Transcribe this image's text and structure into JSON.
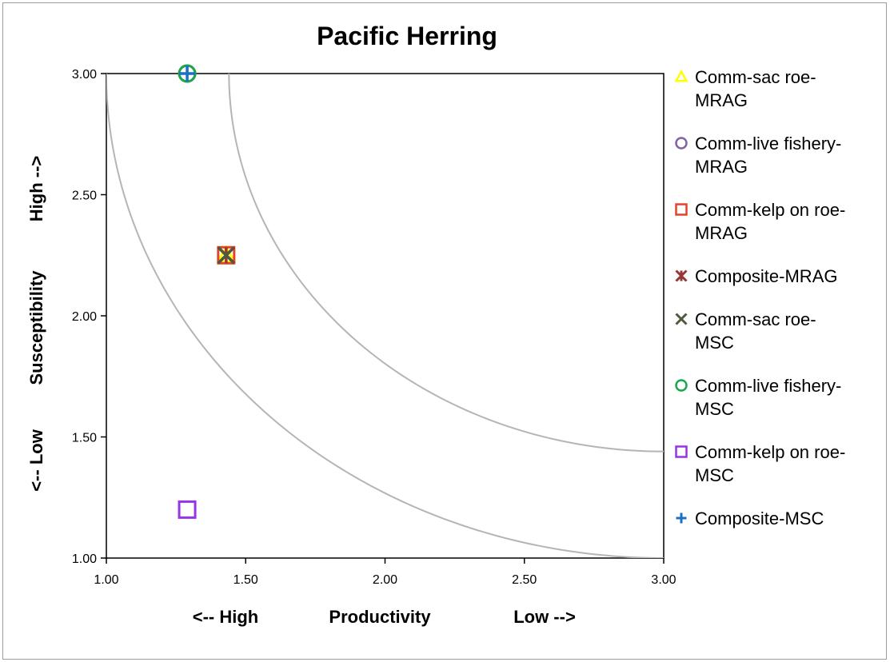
{
  "chart_data": {
    "type": "scatter",
    "title": "Pacific Herring",
    "xlim": [
      1.0,
      3.0
    ],
    "ylim": [
      1.0,
      3.0
    ],
    "x_ticks": [
      "1.00",
      "1.50",
      "2.00",
      "2.50",
      "3.00"
    ],
    "y_ticks": [
      "1.00",
      "1.50",
      "2.00",
      "2.50",
      "3.00"
    ],
    "xlabel": {
      "left": "<-- High",
      "center": "Productivity",
      "right": "Low  -->"
    },
    "ylabel": {
      "left": "<-- Low",
      "center": "Susceptibility",
      "right": "High  -->"
    },
    "grid": false,
    "legend_position": "right",
    "reference_curves": [
      {
        "center_x": 3.0,
        "center_y": 3.0,
        "radius": 1.56
      },
      {
        "center_x": 3.0,
        "center_y": 3.0,
        "radius": 2.0
      }
    ],
    "series": [
      {
        "name": "Comm-sac roe-MRAG",
        "legend_lines": [
          "Comm-sac roe-",
          "MRAG"
        ],
        "marker": "triangle",
        "color": "#ffff00",
        "x": 1.43,
        "y": 2.25
      },
      {
        "name": "Comm-live fishery-MRAG",
        "legend_lines": [
          "Comm-live fishery-",
          "MRAG"
        ],
        "marker": "circle",
        "color": "#8064a2",
        "x": 1.29,
        "y": 3.0
      },
      {
        "name": "Comm-kelp on roe-MRAG",
        "legend_lines": [
          "Comm-kelp on roe-",
          "MRAG"
        ],
        "marker": "square",
        "color": "#e8412a",
        "x": 1.43,
        "y": 2.25
      },
      {
        "name": "Composite-MRAG",
        "legend_lines": [
          "Composite-MRAG"
        ],
        "marker": "asterisk",
        "color": "#953735",
        "x": 1.43,
        "y": 2.25
      },
      {
        "name": "Comm-sac roe-MSC",
        "legend_lines": [
          "Comm-sac roe-",
          "MSC"
        ],
        "marker": "x",
        "color": "#4f5a3c",
        "x": 1.43,
        "y": 2.25
      },
      {
        "name": "Comm-live fishery-MSC",
        "legend_lines": [
          "Comm-live fishery-",
          "MSC"
        ],
        "marker": "circle",
        "color": "#19a84b",
        "x": 1.29,
        "y": 3.0
      },
      {
        "name": "Comm-kelp on roe-MSC",
        "legend_lines": [
          "Comm-kelp on roe-",
          "MSC"
        ],
        "marker": "square",
        "color": "#9933e6",
        "x": 1.29,
        "y": 1.2
      },
      {
        "name": "Composite-MSC",
        "legend_lines": [
          "Composite-MSC"
        ],
        "marker": "plus",
        "color": "#1f6fbf",
        "x": 1.29,
        "y": 3.0
      }
    ]
  }
}
